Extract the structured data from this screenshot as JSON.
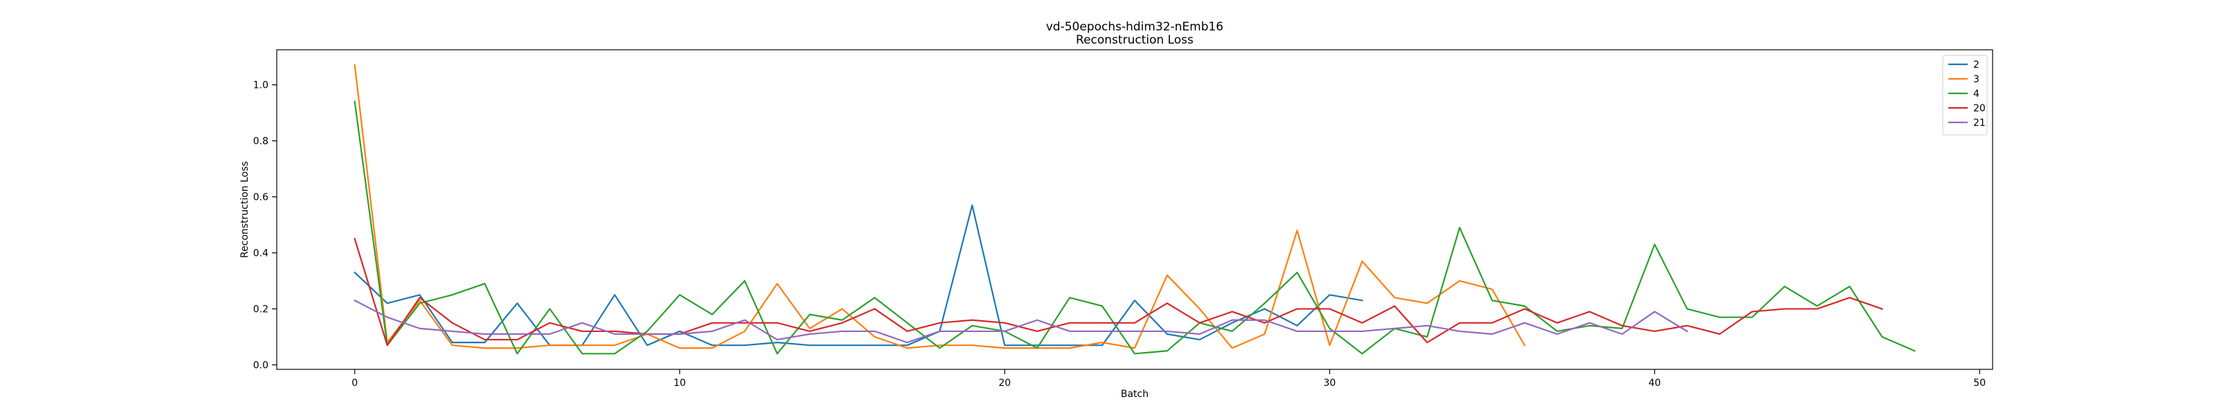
{
  "chart_data": {
    "type": "line",
    "title": "vd-50epochs-hdim32-nEmb16",
    "subtitle": "Reconstruction Loss",
    "xlabel": "Batch",
    "ylabel": "Reconstruction Loss",
    "xlim": [
      -2.4,
      50.4
    ],
    "ylim": [
      -0.016,
      1.125
    ],
    "xticks": [
      0,
      10,
      20,
      30,
      40,
      50
    ],
    "yticks": [
      0.0,
      0.2,
      0.4,
      0.6,
      0.8,
      1.0
    ],
    "xtick_labels": [
      "0",
      "10",
      "20",
      "30",
      "40",
      "50"
    ],
    "ytick_labels": [
      "0.0",
      "0.2",
      "0.4",
      "0.6",
      "0.8",
      "1.0"
    ],
    "grid": false,
    "legend_position": "top-right",
    "series": [
      {
        "name": "2",
        "color": "#1f77b4",
        "x": [
          0,
          1,
          2,
          3,
          4,
          5,
          6,
          7,
          8,
          9,
          10,
          11,
          12,
          13,
          14,
          15,
          16,
          17,
          18,
          19,
          20,
          21,
          22,
          23,
          24,
          25,
          26,
          27,
          28,
          29,
          30,
          31
        ],
        "values": [
          0.33,
          0.22,
          0.25,
          0.08,
          0.08,
          0.22,
          0.07,
          0.07,
          0.25,
          0.07,
          0.12,
          0.07,
          0.07,
          0.08,
          0.07,
          0.07,
          0.07,
          0.07,
          0.12,
          0.57,
          0.07,
          0.07,
          0.07,
          0.07,
          0.23,
          0.11,
          0.09,
          0.15,
          0.2,
          0.14,
          0.25,
          0.23
        ]
      },
      {
        "name": "3",
        "color": "#ff7f0e",
        "x": [
          0,
          1,
          2,
          3,
          4,
          5,
          6,
          7,
          8,
          9,
          10,
          11,
          12,
          13,
          14,
          15,
          16,
          17,
          18,
          19,
          20,
          21,
          22,
          23,
          24,
          25,
          26,
          27,
          28,
          29,
          30,
          31,
          32,
          33,
          34,
          35,
          36
        ],
        "values": [
          1.07,
          0.08,
          0.23,
          0.07,
          0.06,
          0.06,
          0.07,
          0.07,
          0.07,
          0.11,
          0.06,
          0.06,
          0.12,
          0.29,
          0.13,
          0.2,
          0.1,
          0.06,
          0.07,
          0.07,
          0.06,
          0.06,
          0.06,
          0.08,
          0.06,
          0.32,
          0.2,
          0.06,
          0.11,
          0.48,
          0.07,
          0.37,
          0.24,
          0.22,
          0.3,
          0.27,
          0.07
        ]
      },
      {
        "name": "4",
        "color": "#2ca02c",
        "x": [
          0,
          1,
          2,
          3,
          4,
          5,
          6,
          7,
          8,
          9,
          10,
          11,
          12,
          13,
          14,
          15,
          16,
          17,
          18,
          19,
          20,
          21,
          22,
          23,
          24,
          25,
          26,
          27,
          28,
          29,
          30,
          31,
          32,
          33,
          34,
          35,
          36,
          37,
          38,
          39,
          40,
          41,
          42,
          43,
          44,
          45,
          46,
          47,
          48
        ],
        "values": [
          0.94,
          0.07,
          0.22,
          0.25,
          0.29,
          0.04,
          0.2,
          0.04,
          0.04,
          0.12,
          0.25,
          0.18,
          0.3,
          0.04,
          0.18,
          0.16,
          0.24,
          0.15,
          0.06,
          0.14,
          0.12,
          0.06,
          0.24,
          0.21,
          0.04,
          0.05,
          0.15,
          0.12,
          0.22,
          0.33,
          0.13,
          0.04,
          0.13,
          0.1,
          0.49,
          0.23,
          0.21,
          0.12,
          0.14,
          0.13,
          0.43,
          0.2,
          0.17,
          0.17,
          0.28,
          0.21,
          0.28,
          0.1,
          0.05
        ]
      },
      {
        "name": "20",
        "color": "#d62728",
        "x": [
          0,
          1,
          2,
          3,
          4,
          5,
          6,
          7,
          8,
          9,
          10,
          11,
          12,
          13,
          14,
          15,
          16,
          17,
          18,
          19,
          20,
          21,
          22,
          23,
          24,
          25,
          26,
          27,
          28,
          29,
          30,
          31,
          32,
          33,
          34,
          35,
          36,
          37,
          38,
          39,
          40,
          41,
          42,
          43,
          44,
          45,
          46,
          47
        ],
        "values": [
          0.45,
          0.07,
          0.24,
          0.15,
          0.09,
          0.09,
          0.15,
          0.12,
          0.12,
          0.11,
          0.11,
          0.15,
          0.15,
          0.15,
          0.12,
          0.15,
          0.2,
          0.12,
          0.15,
          0.16,
          0.15,
          0.12,
          0.15,
          0.15,
          0.15,
          0.22,
          0.15,
          0.19,
          0.15,
          0.2,
          0.2,
          0.15,
          0.21,
          0.08,
          0.15,
          0.15,
          0.2,
          0.15,
          0.19,
          0.14,
          0.12,
          0.14,
          0.11,
          0.19,
          0.2,
          0.2,
          0.24,
          0.2
        ]
      },
      {
        "name": "21",
        "color": "#9467bd",
        "x": [
          0,
          1,
          2,
          3,
          4,
          5,
          6,
          7,
          8,
          9,
          10,
          11,
          12,
          13,
          14,
          15,
          16,
          17,
          18,
          19,
          20,
          21,
          22,
          23,
          24,
          25,
          26,
          27,
          28,
          29,
          30,
          31,
          32,
          33,
          34,
          35,
          36,
          37,
          38,
          39,
          40,
          41
        ],
        "values": [
          0.23,
          0.17,
          0.13,
          0.12,
          0.11,
          0.11,
          0.11,
          0.15,
          0.11,
          0.11,
          0.11,
          0.12,
          0.16,
          0.09,
          0.11,
          0.12,
          0.12,
          0.08,
          0.12,
          0.12,
          0.12,
          0.16,
          0.12,
          0.12,
          0.12,
          0.12,
          0.11,
          0.16,
          0.16,
          0.12,
          0.12,
          0.12,
          0.13,
          0.14,
          0.12,
          0.11,
          0.15,
          0.11,
          0.15,
          0.11,
          0.19,
          0.12
        ]
      }
    ]
  }
}
